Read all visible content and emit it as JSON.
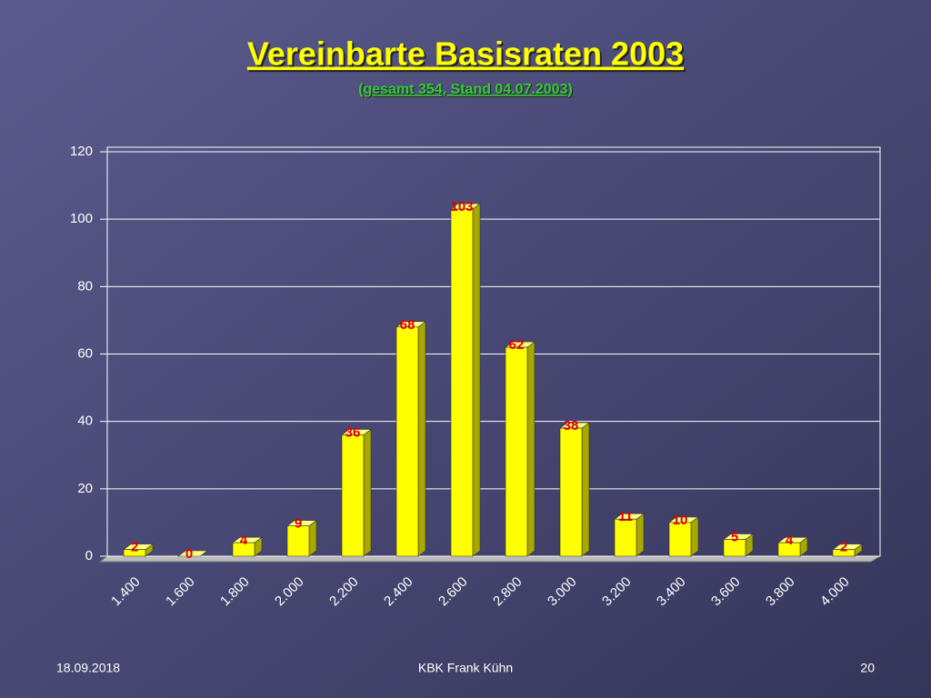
{
  "chart_data": {
    "type": "bar",
    "title": "Vereinbarte Basisraten 2003",
    "subtitle": "(gesamt 354, Stand 04.07.2003)",
    "categories": [
      "1.400",
      "1.600",
      "1.800",
      "2.000",
      "2.200",
      "2.400",
      "2.600",
      "2.800",
      "3.000",
      "3.200",
      "3.400",
      "3.600",
      "3.800",
      "4.000"
    ],
    "values": [
      2,
      0,
      4,
      9,
      36,
      68,
      103,
      62,
      38,
      11,
      10,
      5,
      4,
      2
    ],
    "color": "#ffff00",
    "label_color": "#e00000",
    "ylim": [
      0,
      120
    ],
    "yticks": [
      0,
      20,
      40,
      60,
      80,
      100,
      120
    ],
    "grid": true
  },
  "footer": {
    "date": "18.09.2018",
    "author": "KBK Frank Kühn",
    "page": "20"
  }
}
